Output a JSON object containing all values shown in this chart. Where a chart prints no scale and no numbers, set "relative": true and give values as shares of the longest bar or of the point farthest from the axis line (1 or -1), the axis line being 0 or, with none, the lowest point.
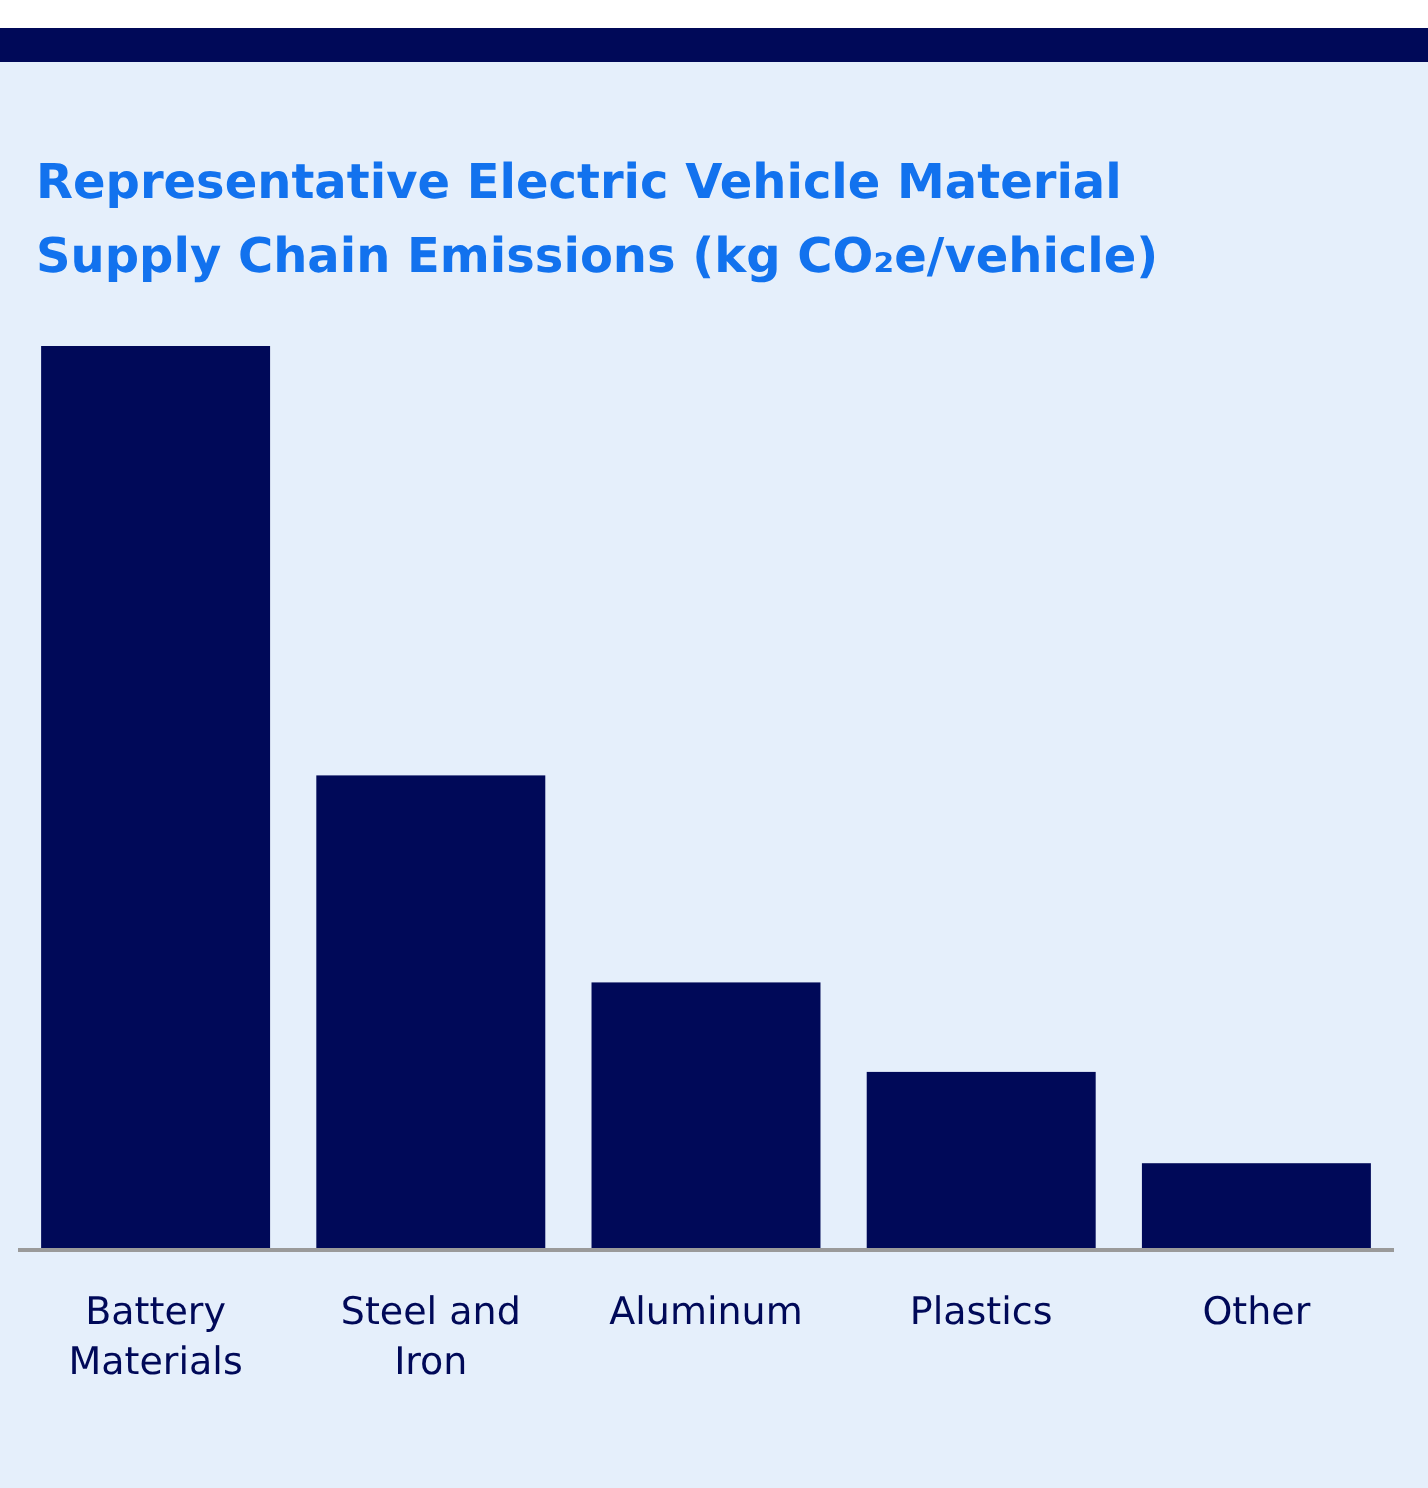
{
  "chart_data": {
    "type": "bar",
    "title": "Representative Electric Vehicle Material Supply Chain Emissions (kg CO₂e/vehicle)",
    "categories": [
      "Battery Materials",
      "Steel and Iron",
      "Aluminum",
      "Plastics",
      "Other"
    ],
    "values": [
      1,
      0.525,
      0.296,
      0.197,
      0.096
    ],
    "color": "#000958",
    "relative": true
  }
}
